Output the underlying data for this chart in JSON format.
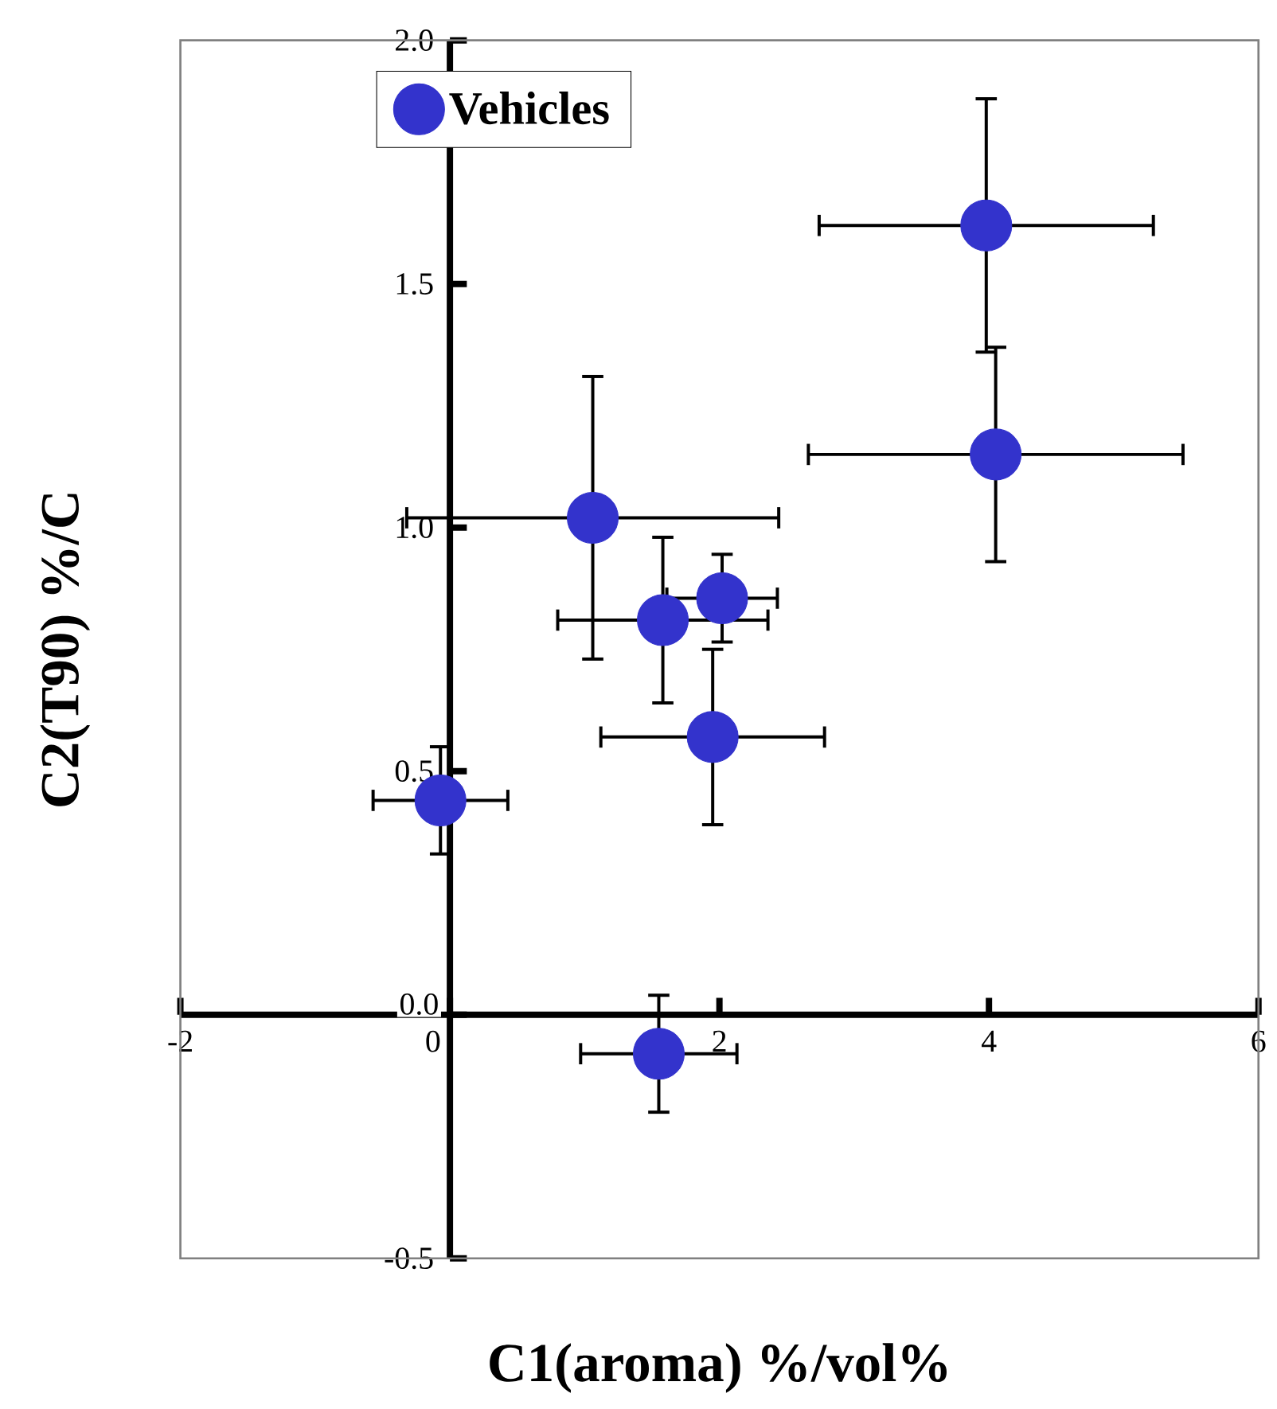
{
  "chart_data": {
    "type": "scatter",
    "xlabel": "C1(aroma)  %/vol%",
    "ylabel": "C2(T90)  %/C",
    "series": [
      {
        "name": "Vehicles",
        "color": "#3333cc",
        "x": [
          -0.07,
          1.06,
          1.58,
          2.02,
          1.95,
          1.55,
          3.98,
          4.05
        ],
        "values": [
          0.44,
          1.02,
          0.81,
          0.855,
          0.57,
          -0.08,
          1.62,
          1.15
        ],
        "xerrors": [
          0.5,
          1.38,
          0.78,
          0.41,
          0.83,
          0.58,
          1.24,
          1.39
        ],
        "errors": [
          0.11,
          0.29,
          0.17,
          0.09,
          0.18,
          0.12,
          0.26,
          0.22
        ]
      }
    ],
    "xlim": [
      -2,
      6
    ],
    "ylim": [
      -0.5,
      2.0
    ],
    "xticks": [
      -2,
      0,
      2,
      4,
      6
    ],
    "yticks": [
      {
        "value": -0.5,
        "label": "-0.5"
      },
      {
        "value": 0,
        "label": "0.0"
      },
      {
        "value": 0.5,
        "label": "0.5"
      },
      {
        "value": 1.0,
        "label": "1.0"
      },
      {
        "value": 1.5,
        "label": "1.5"
      },
      {
        "value": 2.0,
        "label": "2.0"
      }
    ],
    "legend": "top left",
    "marker": "circle",
    "grid": false
  }
}
